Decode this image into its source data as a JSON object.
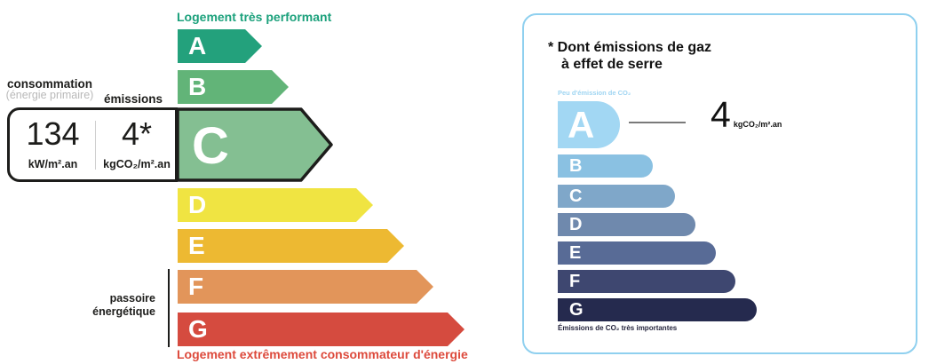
{
  "left_chart": {
    "top_label": "Logement très performant",
    "bottom_label": "Logement extrêmement consommateur d'énergie",
    "consumption_label": "consommation",
    "consumption_sublabel": "(énergie primaire)",
    "emissions_label": "émissions",
    "value_box": {
      "consumption_value": "134",
      "consumption_unit": "kW/m².an",
      "emissions_value": "4*",
      "emissions_unit": "kgCO₂/m².an"
    },
    "sieve_label_line1": "passoire",
    "sieve_label_line2": "énergétique",
    "selected_class": "C",
    "classes": [
      {
        "letter": "A",
        "color": "#23a17c",
        "length": 95
      },
      {
        "letter": "B",
        "color": "#62b478",
        "length": 125
      },
      {
        "letter": "C",
        "color": "#84bf92",
        "length": 177
      },
      {
        "letter": "D",
        "color": "#f0e442",
        "length": 220
      },
      {
        "letter": "E",
        "color": "#edb932",
        "length": 255
      },
      {
        "letter": "F",
        "color": "#e2955a",
        "length": 288
      },
      {
        "letter": "G",
        "color": "#d54b3f",
        "length": 323
      }
    ]
  },
  "right_panel": {
    "title_line1": "* Dont émissions de gaz",
    "title_line2": "à effet de serre",
    "low_label": "Peu d'émission de CO₂",
    "high_label": "Émissions de CO₂ très importantes",
    "value": "4",
    "value_unit": "kgCO₂/m².an",
    "selected_class": "A",
    "classes": [
      {
        "letter": "A",
        "color": "#a2d7f3",
        "length": 70
      },
      {
        "letter": "B",
        "color": "#8ac1e2",
        "length": 107
      },
      {
        "letter": "C",
        "color": "#7fa7c9",
        "length": 132
      },
      {
        "letter": "D",
        "color": "#6f89ad",
        "length": 155
      },
      {
        "letter": "E",
        "color": "#586b96",
        "length": 178
      },
      {
        "letter": "F",
        "color": "#3e4770",
        "length": 200
      },
      {
        "letter": "G",
        "color": "#252a4e",
        "length": 224
      }
    ]
  },
  "chart_data": [
    {
      "type": "bar",
      "title": "DPE — consommation d'énergie (classes A à G)",
      "categories": [
        "A",
        "B",
        "C",
        "D",
        "E",
        "F",
        "G"
      ],
      "values": [
        95,
        125,
        177,
        220,
        255,
        288,
        323
      ],
      "value_note": "longueurs relatives des flèches (échelle ordinale, pas d'axe numérique)",
      "highlighted_category": "C",
      "annotations": {
        "consommation": "134 kW/m².an",
        "emissions": "4* kgCO₂/m².an",
        "haut": "Logement très performant",
        "bas": "Logement extrêmement consommateur d'énergie",
        "passoire_energetique_classes": [
          "F",
          "G"
        ]
      },
      "legend_position": "none",
      "grid": false
    },
    {
      "type": "bar",
      "title": "Dont émissions de gaz à effet de serre (classes A à G)",
      "categories": [
        "A",
        "B",
        "C",
        "D",
        "E",
        "F",
        "G"
      ],
      "values": [
        70,
        107,
        132,
        155,
        178,
        200,
        224
      ],
      "value_note": "longueurs relatives des barres (échelle ordinale)",
      "highlighted_category": "A",
      "annotations": {
        "valeur": "4 kgCO₂/m².an",
        "haut": "Peu d'émission de CO₂",
        "bas": "Émissions de CO₂ très importantes"
      },
      "legend_position": "none",
      "grid": false
    }
  ]
}
